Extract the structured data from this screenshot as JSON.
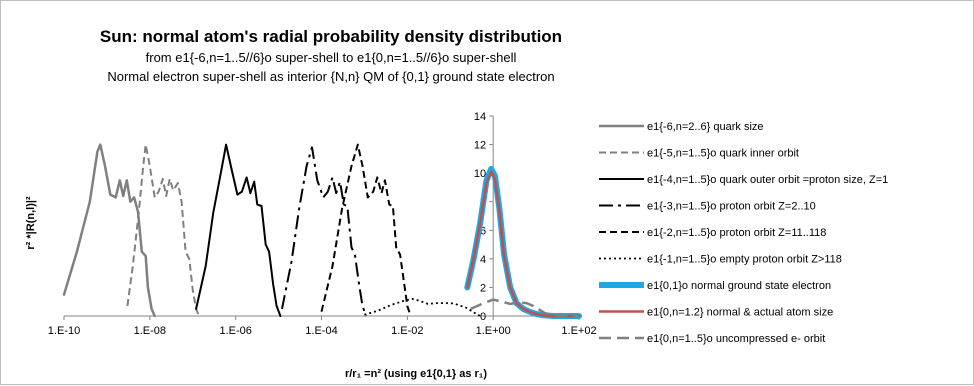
{
  "chart_data": {
    "type": "line",
    "title": "Sun: normal atom's radial probability density distribution",
    "subtitle_lines": [
      "from e1{-6,n=1..5//6}o super-shell to e1{0,n=1..5//6}o super-shell",
      "Normal electron super-shell as interior {N,n} QM of {0,1} ground state electron"
    ],
    "ylabel": "r² *|R(n,l)|²",
    "xlabel": "r/r₁ =n²    (using  e1{0,1} as r₁)",
    "x_scale": "log",
    "xlim": [
      1e-10,
      100
    ],
    "ylim": [
      0,
      14
    ],
    "x_ticks": [
      "1.E-10",
      "1.E-08",
      "1.E-06",
      "1.E-04",
      "1.E-02",
      "1.E+00",
      "1.E+02"
    ],
    "y_ticks": [
      "0",
      "2",
      "4",
      "6",
      "8",
      "10",
      "12",
      "14"
    ],
    "legend_position": "right",
    "series": [
      {
        "name": "e1{-6,n=2..6} quark size",
        "color": "#808080",
        "dash": "solid",
        "width": 2.5,
        "points": [
          [
            1e-10,
            1.5
          ],
          [
            2e-10,
            4.5
          ],
          [
            4e-10,
            8
          ],
          [
            6e-10,
            11.5
          ],
          [
            7e-10,
            12
          ],
          [
            9e-10,
            10.5
          ],
          [
            1.2e-09,
            8.5
          ],
          [
            1.6e-09,
            8.3
          ],
          [
            2e-09,
            9.5
          ],
          [
            2.4e-09,
            8.4
          ],
          [
            2.9e-09,
            9.5
          ],
          [
            3.5e-09,
            8
          ],
          [
            4.3e-09,
            8.3
          ],
          [
            5.3e-09,
            7.3
          ],
          [
            6.5e-09,
            4.5
          ],
          [
            8e-09,
            4.2
          ],
          [
            9e-09,
            2
          ],
          [
            1.1e-08,
            0.5
          ],
          [
            1.3e-08,
            0
          ]
        ]
      },
      {
        "name": "e1{-5,n=1..5}o quark inner orbit",
        "color": "#808080",
        "dash": "dashed",
        "width": 2,
        "points": [
          [
            3e-09,
            0.7
          ],
          [
            4e-09,
            3.5
          ],
          [
            5.5e-09,
            7.2
          ],
          [
            7e-09,
            10.5
          ],
          [
            8e-09,
            12
          ],
          [
            1e-08,
            10.5
          ],
          [
            1.3e-08,
            8.3
          ],
          [
            1.6e-08,
            8.7
          ],
          [
            2e-08,
            9.6
          ],
          [
            2.4e-08,
            8.4
          ],
          [
            2.9e-08,
            9.6
          ],
          [
            3.5e-08,
            8.8
          ],
          [
            4.5e-08,
            9.3
          ],
          [
            5.5e-08,
            8
          ],
          [
            6.8e-08,
            4.5
          ],
          [
            8.3e-08,
            4
          ],
          [
            1e-07,
            1.8
          ],
          [
            1.2e-07,
            0.5
          ],
          [
            1.4e-07,
            0
          ]
        ]
      },
      {
        "name": "e1{-4,n=1..5}o quark outer orbit =proton size, Z=1",
        "color": "#000000",
        "dash": "solid",
        "width": 2,
        "points": [
          [
            1.2e-07,
            0.5
          ],
          [
            2e-07,
            3.5
          ],
          [
            3e-07,
            7.2
          ],
          [
            4.5e-07,
            10
          ],
          [
            6e-07,
            12
          ],
          [
            8e-07,
            10.3
          ],
          [
            1.1e-06,
            8.5
          ],
          [
            1.4e-06,
            8.7
          ],
          [
            1.8e-06,
            9.7
          ],
          [
            2.2e-06,
            8.6
          ],
          [
            2.7e-06,
            9.4
          ],
          [
            3.2e-06,
            7.8
          ],
          [
            4e-06,
            7.7
          ],
          [
            5e-06,
            5
          ],
          [
            6e-06,
            4.5
          ],
          [
            7.5e-06,
            2.2
          ],
          [
            9e-06,
            0.7
          ],
          [
            1.1e-05,
            0
          ]
        ]
      },
      {
        "name": "e1{-3,n=1..5}o proton orbit Z=2..10",
        "color": "#000000",
        "dash": "longdashdot",
        "width": 2,
        "points": [
          [
            1.2e-05,
            0.5
          ],
          [
            2e-05,
            3.8
          ],
          [
            3e-05,
            7.5
          ],
          [
            4.5e-05,
            10.5
          ],
          [
            6e-05,
            11.8
          ],
          [
            8e-05,
            9.5
          ],
          [
            0.00011,
            8.3
          ],
          [
            0.00014,
            8.7
          ],
          [
            0.00018,
            9.7
          ],
          [
            0.00022,
            8.6
          ],
          [
            0.00027,
            9.4
          ],
          [
            0.00033,
            7.8
          ],
          [
            0.0004,
            7.7
          ],
          [
            0.0005,
            4.8
          ],
          [
            0.0006,
            4.3
          ],
          [
            0.00075,
            2.2
          ],
          [
            0.0009,
            0.7
          ],
          [
            0.0011,
            0
          ]
        ]
      },
      {
        "name": "e1{-2,n=1..5}o proton orbit Z=11..118",
        "color": "#000000",
        "dash": "dashed",
        "width": 2,
        "points": [
          [
            0.0001,
            0.3
          ],
          [
            0.00018,
            3.5
          ],
          [
            0.0003,
            7.5
          ],
          [
            0.0005,
            10.5
          ],
          [
            0.0007,
            12
          ],
          [
            0.0009,
            10.5
          ],
          [
            0.0012,
            8.3
          ],
          [
            0.0016,
            8.7
          ],
          [
            0.002,
            9.7
          ],
          [
            0.0025,
            8.6
          ],
          [
            0.003,
            9.5
          ],
          [
            0.0038,
            7.8
          ],
          [
            0.0046,
            7.7
          ],
          [
            0.0055,
            4.8
          ],
          [
            0.0068,
            4.3
          ],
          [
            0.0085,
            2.2
          ],
          [
            0.01,
            0.7
          ],
          [
            0.012,
            0
          ]
        ]
      },
      {
        "name": "e1{-1,n=1..5}o empty proton orbit Z>118",
        "color": "#000000",
        "dash": "dotted",
        "width": 1.8,
        "points": [
          [
            0.001,
            0.1
          ],
          [
            0.002,
            0.35
          ],
          [
            0.004,
            0.75
          ],
          [
            0.008,
            1.05
          ],
          [
            0.013,
            1.2
          ],
          [
            0.02,
            1.05
          ],
          [
            0.03,
            0.85
          ],
          [
            0.05,
            0.9
          ],
          [
            0.08,
            0.9
          ],
          [
            0.12,
            0.88
          ],
          [
            0.18,
            0.7
          ],
          [
            0.25,
            0.55
          ],
          [
            0.35,
            0.25
          ],
          [
            0.5,
            0
          ]
        ]
      },
      {
        "name": "e1{0,1}o normal ground state electron",
        "color": "#1fa9e1",
        "dash": "solid",
        "width": 6,
        "points": [
          [
            0.25,
            2
          ],
          [
            0.35,
            4
          ],
          [
            0.5,
            6.5
          ],
          [
            0.7,
            9.5
          ],
          [
            0.9,
            10.3
          ],
          [
            1.1,
            9.8
          ],
          [
            1.4,
            7.5
          ],
          [
            1.8,
            4.3
          ],
          [
            2.5,
            2
          ],
          [
            3.5,
            0.9
          ],
          [
            5,
            0.5
          ],
          [
            7,
            0.3
          ],
          [
            10,
            0.15
          ],
          [
            15,
            0.05
          ],
          [
            25,
            0
          ],
          [
            100,
            0
          ]
        ]
      },
      {
        "name": "e1{0,n=1.2} normal & actual atom size",
        "color": "#c0504d",
        "dash": "solid",
        "width": 2.5,
        "points": [
          [
            0.25,
            2
          ],
          [
            0.35,
            4
          ],
          [
            0.5,
            6.5
          ],
          [
            0.7,
            9.3
          ],
          [
            0.9,
            10.1
          ],
          [
            1.1,
            9.6
          ],
          [
            1.4,
            7.3
          ],
          [
            1.8,
            4.2
          ],
          [
            2.5,
            2
          ],
          [
            3.5,
            0.9
          ],
          [
            5,
            0.5
          ],
          [
            7,
            0.3
          ],
          [
            10,
            0.15
          ],
          [
            15,
            0.05
          ],
          [
            25,
            0
          ],
          [
            100,
            0
          ]
        ]
      },
      {
        "name": "e1{0,n=1..5}o uncompressed e- orbit",
        "color": "#808080",
        "dash": "longdash",
        "width": 2.5,
        "points": [
          [
            0.3,
            0.5
          ],
          [
            0.6,
            0.9
          ],
          [
            1,
            1.15
          ],
          [
            1.6,
            1
          ],
          [
            2.5,
            0.85
          ],
          [
            4,
            0.95
          ],
          [
            6,
            0.9
          ],
          [
            8,
            0.75
          ],
          [
            11,
            0.5
          ],
          [
            16,
            0.2
          ],
          [
            25,
            0.05
          ],
          [
            100,
            0
          ]
        ]
      }
    ]
  }
}
